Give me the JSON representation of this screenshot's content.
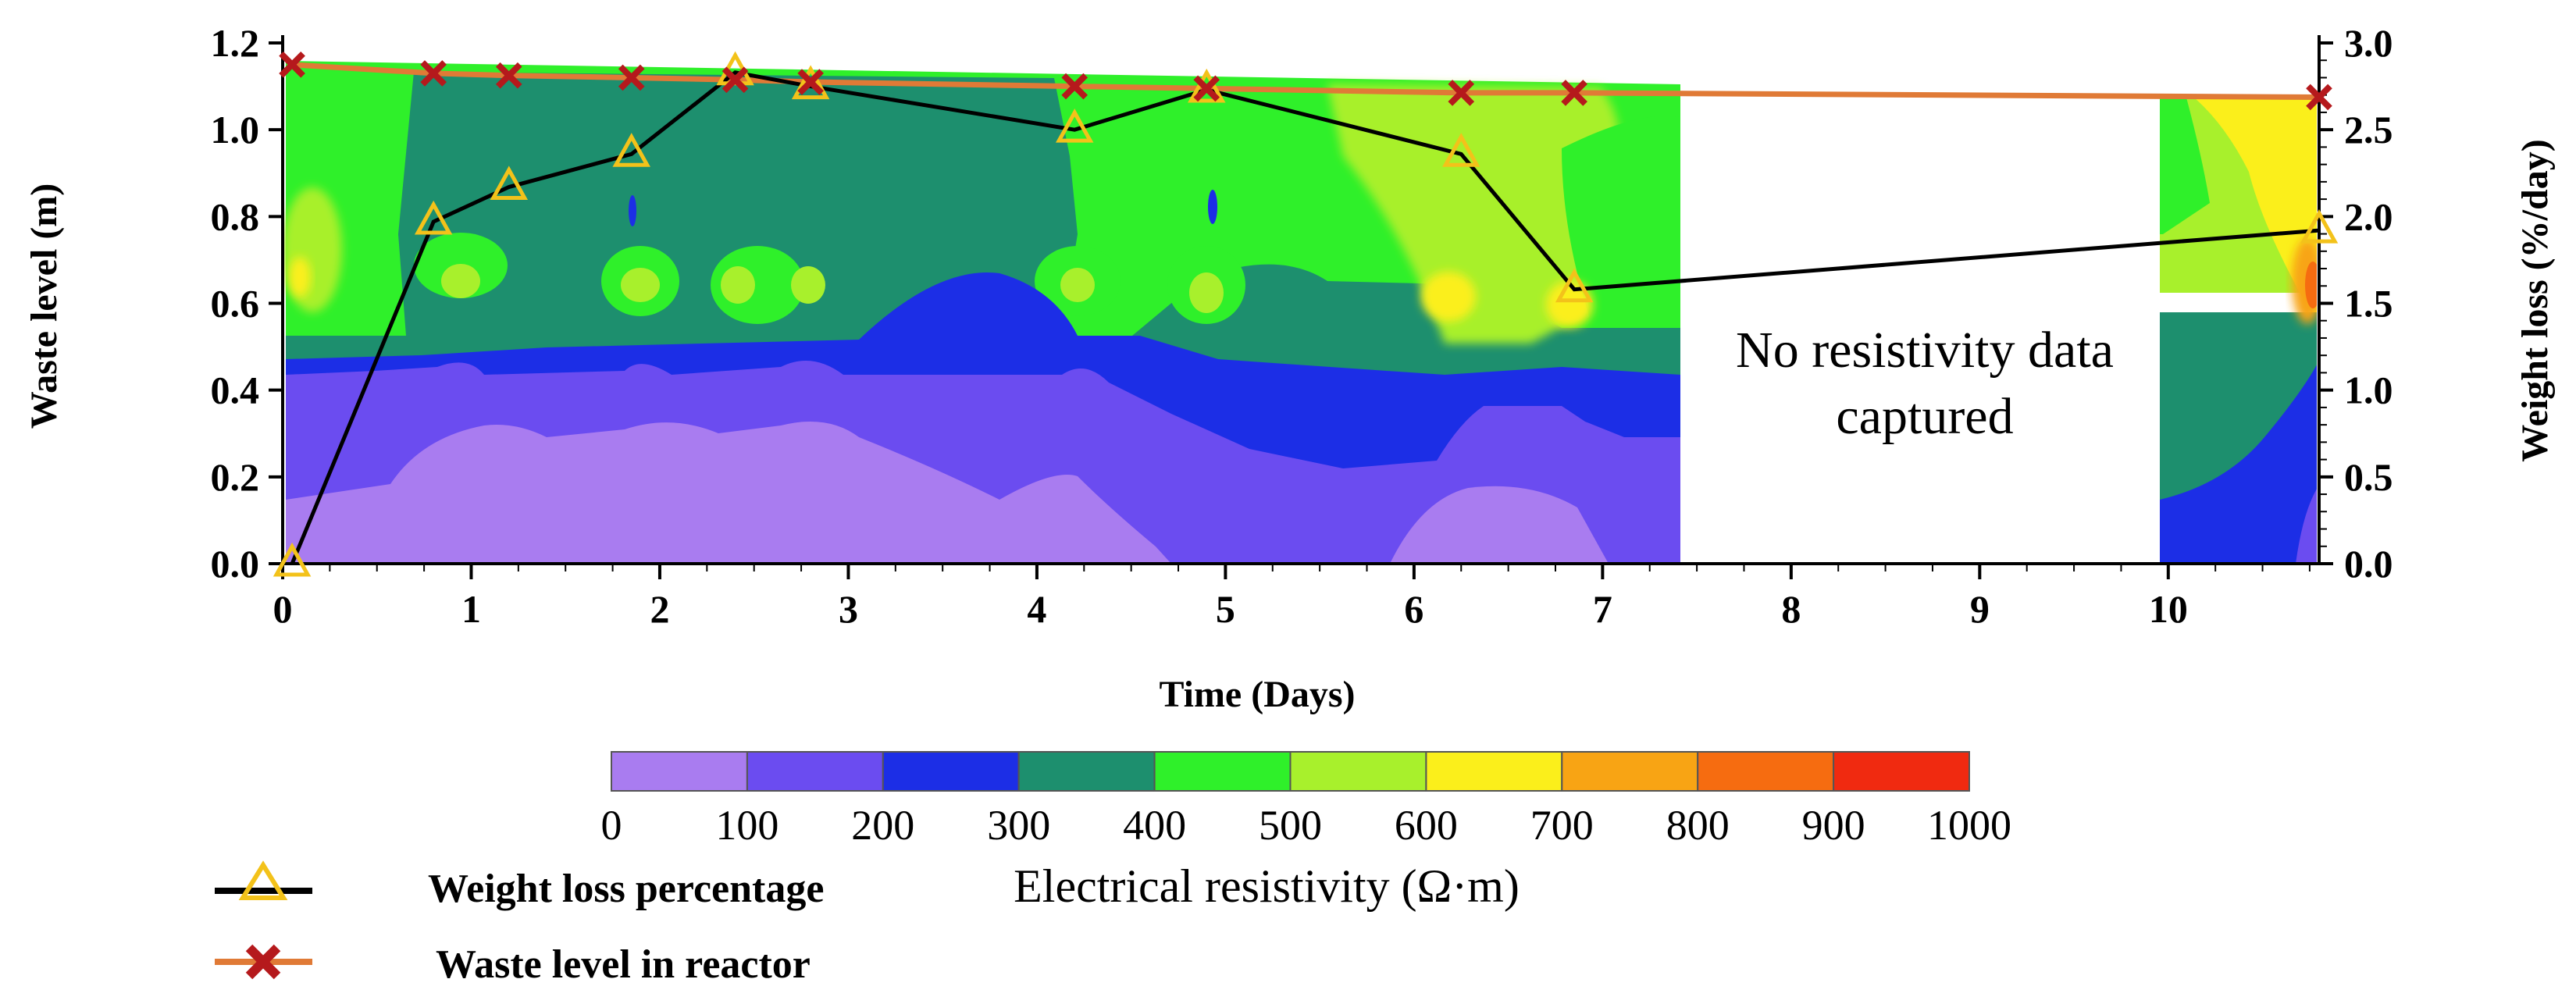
{
  "chart_data": {
    "type": "heatmap",
    "note": [
      "No resistivity data",
      "captured"
    ],
    "x_axis": {
      "label": "Time (Days)",
      "range": [
        0,
        10.8
      ],
      "ticks": [
        "0",
        "1",
        "2",
        "3",
        "4",
        "5",
        "6",
        "7",
        "8",
        "9",
        "10"
      ],
      "tick_values": [
        0,
        1,
        2,
        3,
        4,
        5,
        6,
        7,
        8,
        9,
        10
      ]
    },
    "y_axis_left": {
      "label": "Waste level (m)",
      "range": [
        0,
        1.2
      ],
      "ticks": [
        "0.0",
        "0.2",
        "0.4",
        "0.6",
        "0.8",
        "1.0",
        "1.2"
      ],
      "tick_values": [
        0,
        0.2,
        0.4,
        0.6,
        0.8,
        1.0,
        1.2
      ]
    },
    "y_axis_right": {
      "label": "Weight loss (%/day)",
      "range": [
        0,
        3.0
      ],
      "ticks": [
        "0.0",
        "0.5",
        "1.0",
        "1.5",
        "2.0",
        "2.5",
        "3.0"
      ],
      "tick_values": [
        0,
        0.5,
        1.0,
        1.5,
        2.0,
        2.5,
        3.0
      ]
    },
    "colorbar": {
      "title": "Electrical resistivity (Ω·m)",
      "ticks": [
        "0",
        "100",
        "200",
        "300",
        "400",
        "500",
        "600",
        "700",
        "800",
        "900",
        "1000"
      ],
      "colors": [
        "#a97cf0",
        "#6b4cf0",
        "#1c2ee6",
        "#1d8f6e",
        "#2ff02a",
        "#a8f02c",
        "#fbef1b",
        "#f8a414",
        "#f66c10",
        "#f02a10"
      ]
    },
    "resistivity_gap_days": [
      7.5,
      10.0
    ],
    "series": [
      {
        "name": "Weight loss percentage",
        "axis": "right",
        "color": "#000000",
        "marker": "triangle",
        "marker_color": "#f3c21a",
        "x": [
          0.05,
          0.8,
          1.2,
          1.85,
          2.4,
          2.8,
          4.2,
          4.9,
          6.25,
          6.85,
          10.8
        ],
        "y": [
          0.0,
          1.97,
          2.17,
          2.36,
          2.83,
          2.75,
          2.5,
          2.73,
          2.36,
          1.58,
          1.92
        ]
      },
      {
        "name": "Waste level in reactor",
        "axis": "left",
        "color": "#e07a36",
        "marker": "cross",
        "marker_color": "#b5191c",
        "x": [
          0.05,
          0.8,
          1.2,
          1.85,
          2.4,
          2.8,
          4.2,
          4.9,
          6.25,
          6.85,
          10.8
        ],
        "y": [
          1.15,
          1.13,
          1.125,
          1.12,
          1.115,
          1.11,
          1.1,
          1.095,
          1.085,
          1.085,
          1.075
        ]
      }
    ]
  }
}
